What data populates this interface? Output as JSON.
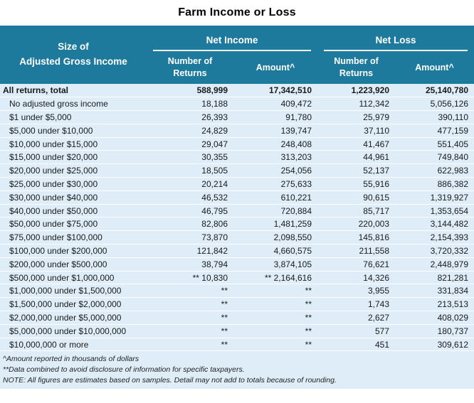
{
  "title": "Farm Income or Loss",
  "colors": {
    "header_bg": "#1E7A9D",
    "header_text": "#FFFFFF",
    "row_bg": "#DEEDF7",
    "row_divider": "#FFFFFF",
    "body_text": "#1A1A1A"
  },
  "header": {
    "agi_label": "Size of\nAdjusted Gross Income",
    "net_income_group": "Net Income",
    "net_loss_group": "Net Loss",
    "number_of_returns": "Number of\nReturns",
    "amount": "Amount^"
  },
  "rows": [
    {
      "label": "All returns, total",
      "bold": true,
      "indent": false,
      "ni_returns": "588,999",
      "ni_amount": "17,342,510",
      "nl_returns": "1,223,920",
      "nl_amount": "25,140,780"
    },
    {
      "label": "No adjusted gross income",
      "bold": false,
      "indent": true,
      "ni_returns": "18,188",
      "ni_amount": "409,472",
      "nl_returns": "112,342",
      "nl_amount": "5,056,126"
    },
    {
      "label": "$1 under $5,000",
      "bold": false,
      "indent": true,
      "ni_returns": "26,393",
      "ni_amount": "91,780",
      "nl_returns": "25,979",
      "nl_amount": "390,110"
    },
    {
      "label": "$5,000 under $10,000",
      "bold": false,
      "indent": true,
      "ni_returns": "24,829",
      "ni_amount": "139,747",
      "nl_returns": "37,110",
      "nl_amount": "477,159"
    },
    {
      "label": "$10,000 under $15,000",
      "bold": false,
      "indent": true,
      "ni_returns": "29,047",
      "ni_amount": "248,408",
      "nl_returns": "41,467",
      "nl_amount": "551,405"
    },
    {
      "label": "$15,000 under $20,000",
      "bold": false,
      "indent": true,
      "ni_returns": "30,355",
      "ni_amount": "313,203",
      "nl_returns": "44,961",
      "nl_amount": "749,840"
    },
    {
      "label": "$20,000 under $25,000",
      "bold": false,
      "indent": true,
      "ni_returns": "18,505",
      "ni_amount": "254,056",
      "nl_returns": "52,137",
      "nl_amount": "622,983"
    },
    {
      "label": "$25,000 under $30,000",
      "bold": false,
      "indent": true,
      "ni_returns": "20,214",
      "ni_amount": "275,633",
      "nl_returns": "55,916",
      "nl_amount": "886,382"
    },
    {
      "label": "$30,000 under $40,000",
      "bold": false,
      "indent": true,
      "ni_returns": "46,532",
      "ni_amount": "610,221",
      "nl_returns": "90,615",
      "nl_amount": "1,319,927"
    },
    {
      "label": "$40,000 under $50,000",
      "bold": false,
      "indent": true,
      "ni_returns": "46,795",
      "ni_amount": "720,884",
      "nl_returns": "85,717",
      "nl_amount": "1,353,654"
    },
    {
      "label": "$50,000 under $75,000",
      "bold": false,
      "indent": true,
      "ni_returns": "82,806",
      "ni_amount": "1,481,259",
      "nl_returns": "220,003",
      "nl_amount": "3,144,482"
    },
    {
      "label": "$75,000 under $100,000",
      "bold": false,
      "indent": true,
      "ni_returns": "73,870",
      "ni_amount": "2,098,550",
      "nl_returns": "145,816",
      "nl_amount": "2,154,393"
    },
    {
      "label": "$100,000 under $200,000",
      "bold": false,
      "indent": true,
      "ni_returns": "121,842",
      "ni_amount": "4,660,575",
      "nl_returns": "211,558",
      "nl_amount": "3,720,332"
    },
    {
      "label": "$200,000 under $500,000",
      "bold": false,
      "indent": true,
      "ni_returns": "38,794",
      "ni_amount": "3,874,105",
      "nl_returns": "76,621",
      "nl_amount": "2,448,979"
    },
    {
      "label": "$500,000 under $1,000,000",
      "bold": false,
      "indent": true,
      "ni_returns": "** 10,830",
      "ni_amount": "** 2,164,616",
      "nl_returns": "14,326",
      "nl_amount": "821,281"
    },
    {
      "label": "$1,000,000 under $1,500,000",
      "bold": false,
      "indent": true,
      "ni_returns": "**",
      "ni_amount": "**",
      "nl_returns": "3,955",
      "nl_amount": "331,834"
    },
    {
      "label": "$1,500,000 under $2,000,000",
      "bold": false,
      "indent": true,
      "ni_returns": "**",
      "ni_amount": "**",
      "nl_returns": "1,743",
      "nl_amount": "213,513"
    },
    {
      "label": "$2,000,000 under $5,000,000",
      "bold": false,
      "indent": true,
      "ni_returns": "**",
      "ni_amount": "**",
      "nl_returns": "2,627",
      "nl_amount": "408,029"
    },
    {
      "label": "$5,000,000 under $10,000,000",
      "bold": false,
      "indent": true,
      "ni_returns": "**",
      "ni_amount": "**",
      "nl_returns": "577",
      "nl_amount": "180,737"
    },
    {
      "label": "$10,000,000 or more",
      "bold": false,
      "indent": true,
      "ni_returns": "**",
      "ni_amount": "**",
      "nl_returns": "451",
      "nl_amount": "309,612"
    }
  ],
  "footnotes": [
    "^Amount reported in thousands of dollars",
    "**Data combined to avoid disclosure of information for specific taxpayers.",
    "NOTE:  All figures are estimates based on samples. Detail may not add to totals because of rounding."
  ]
}
